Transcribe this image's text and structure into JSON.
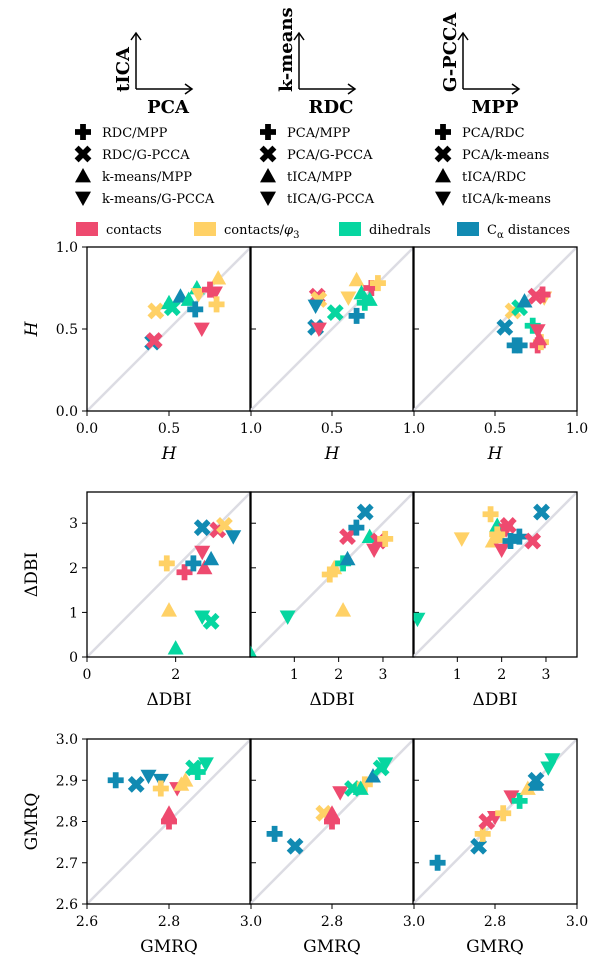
{
  "colors": {
    "contacts": "#ee4a6f",
    "contacts/φ3": "#ffd166",
    "dihedrals": "#06d6a0",
    "Cα distances": "#118ab2",
    "diagonal": "#dcdce3"
  },
  "pair_diagrams": [
    {
      "y": "tICA",
      "x": "PCA"
    },
    {
      "y": "k-means",
      "x": "RDC"
    },
    {
      "y": "G-PCCA",
      "x": "MPP"
    }
  ],
  "marker_legend": [
    [
      {
        "shape": "plus",
        "label": "RDC/MPP"
      },
      {
        "shape": "cross",
        "label": "RDC/G-PCCA"
      },
      {
        "shape": "triangle-up",
        "label": "k-means/MPP"
      },
      {
        "shape": "triangle-down",
        "label": "k-means/G-PCCA"
      }
    ],
    [
      {
        "shape": "plus",
        "label": "PCA/MPP"
      },
      {
        "shape": "cross",
        "label": "PCA/G-PCCA"
      },
      {
        "shape": "triangle-up",
        "label": "tICA/MPP"
      },
      {
        "shape": "triangle-down",
        "label": "tICA/G-PCCA"
      }
    ],
    [
      {
        "shape": "plus",
        "label": "PCA/RDC"
      },
      {
        "shape": "cross",
        "label": "PCA/k-means"
      },
      {
        "shape": "triangle-up",
        "label": "tICA/RDC"
      },
      {
        "shape": "triangle-down",
        "label": "tICA/k-means"
      }
    ]
  ],
  "color_legend": [
    {
      "key": "contacts",
      "label": "contacts"
    },
    {
      "key": "contacts/φ3",
      "label": "contacts/φ3"
    },
    {
      "key": "dihedrals",
      "label": "dihedrals"
    },
    {
      "key": "Cα distances",
      "label": "Cα distances"
    }
  ],
  "chart_data": [
    {
      "type": "scatter",
      "row": "H",
      "xlabel": "H",
      "ylabel": "H",
      "ylim": [
        0,
        1
      ],
      "yticks": [
        "0.0",
        "0.5",
        "1.0"
      ],
      "xlims": [
        [
          0,
          1
        ],
        [
          0,
          1
        ],
        [
          0,
          1
        ]
      ],
      "xticks": [
        [
          {
            "v": 0,
            "t": "0.0"
          },
          {
            "v": 0.5,
            "t": "0.5"
          },
          {
            "v": 1,
            "t": "1.0"
          }
        ],
        [
          {
            "v": 0.5,
            "t": "0.5"
          },
          {
            "v": 1,
            "t": "1.0"
          }
        ],
        [
          {
            "v": 0.5,
            "t": "0.5"
          },
          {
            "v": 1,
            "t": "1.0"
          }
        ]
      ],
      "points": [
        [
          [
            0.4,
            0.42,
            "cross",
            "Cα distances"
          ],
          [
            0.41,
            0.43,
            "cross",
            "contacts"
          ],
          [
            0.42,
            0.61,
            "cross",
            "contacts/φ3"
          ],
          [
            0.52,
            0.63,
            "cross",
            "dihedrals"
          ],
          [
            0.5,
            0.66,
            "triangle-up",
            "dihedrals"
          ],
          [
            0.57,
            0.7,
            "triangle-up",
            "Cα distances"
          ],
          [
            0.62,
            0.68,
            "triangle-up",
            "dihedrals"
          ],
          [
            0.67,
            0.75,
            "triangle-up",
            "dihedrals"
          ],
          [
            0.7,
            0.5,
            "triangle-down",
            "contacts"
          ],
          [
            0.68,
            0.71,
            "triangle-down",
            "contacts/φ3"
          ],
          [
            0.78,
            0.72,
            "triangle-down",
            "contacts"
          ],
          [
            0.8,
            0.81,
            "triangle-up",
            "contacts/φ3"
          ],
          [
            0.66,
            0.62,
            "plus",
            "Cα distances"
          ],
          [
            0.79,
            0.65,
            "plus",
            "contacts/φ3"
          ],
          [
            0.75,
            0.74,
            "plus",
            "contacts"
          ]
        ],
        [
          [
            0.4,
            0.51,
            "cross",
            "Cα distances"
          ],
          [
            0.41,
            0.7,
            "cross",
            "contacts"
          ],
          [
            0.42,
            0.68,
            "cross",
            "contacts/φ3"
          ],
          [
            0.52,
            0.6,
            "cross",
            "dihedrals"
          ],
          [
            0.4,
            0.64,
            "triangle-down",
            "Cα distances"
          ],
          [
            0.42,
            0.5,
            "triangle-down",
            "contacts"
          ],
          [
            0.6,
            0.69,
            "triangle-down",
            "contacts/φ3"
          ],
          [
            0.65,
            0.8,
            "triangle-up",
            "contacts/φ3"
          ],
          [
            0.68,
            0.72,
            "triangle-up",
            "dihedrals"
          ],
          [
            0.7,
            0.66,
            "plus",
            "dihedrals"
          ],
          [
            0.65,
            0.58,
            "plus",
            "Cα distances"
          ],
          [
            0.74,
            0.75,
            "plus",
            "contacts"
          ],
          [
            0.78,
            0.78,
            "plus",
            "contacts/φ3"
          ],
          [
            0.73,
            0.68,
            "triangle-up",
            "dihedrals"
          ]
        ],
        [
          [
            0.56,
            0.51,
            "cross",
            "Cα distances"
          ],
          [
            0.61,
            0.61,
            "cross",
            "contacts/φ3"
          ],
          [
            0.65,
            0.63,
            "cross",
            "dihedrals"
          ],
          [
            0.75,
            0.7,
            "cross",
            "contacts"
          ],
          [
            0.62,
            0.4,
            "plus",
            "Cα distances"
          ],
          [
            0.65,
            0.4,
            "plus",
            "Cα distances"
          ],
          [
            0.73,
            0.52,
            "plus",
            "dihedrals"
          ],
          [
            0.76,
            0.4,
            "plus",
            "contacts"
          ],
          [
            0.78,
            0.42,
            "plus",
            "contacts/φ3"
          ],
          [
            0.68,
            0.67,
            "triangle-up",
            "Cα distances"
          ],
          [
            0.76,
            0.49,
            "triangle-down",
            "contacts"
          ],
          [
            0.8,
            0.69,
            "triangle-down",
            "contacts/φ3"
          ],
          [
            0.79,
            0.71,
            "plus",
            "contacts"
          ],
          [
            0.77,
            0.44,
            "triangle-up",
            "contacts"
          ]
        ]
      ]
    },
    {
      "type": "scatter",
      "row": "ΔDBI",
      "xlabel": "ΔDBI",
      "ylabel": "ΔDBI",
      "ylim": [
        0,
        3.7
      ],
      "yticks": [
        "0",
        "1",
        "2",
        "3"
      ],
      "xlims": [
        [
          0,
          3.7
        ],
        [
          0,
          3.7
        ],
        [
          0,
          3.7
        ]
      ],
      "xticks": [
        [
          {
            "v": 0,
            "t": "0"
          },
          {
            "v": 2,
            "t": "2"
          }
        ],
        [
          {
            "v": 1,
            "t": "1"
          },
          {
            "v": 2,
            "t": "2"
          },
          {
            "v": 3,
            "t": "3"
          }
        ],
        [
          {
            "v": 1,
            "t": "1"
          },
          {
            "v": 2,
            "t": "2"
          },
          {
            "v": 3,
            "t": "3"
          }
        ]
      ],
      "points": [
        [
          [
            1.8,
            2.1,
            "plus",
            "contacts/φ3"
          ],
          [
            1.85,
            1.05,
            "triangle-up",
            "contacts/φ3"
          ],
          [
            2.0,
            0.2,
            "triangle-up",
            "dihedrals"
          ],
          [
            2.2,
            1.9,
            "plus",
            "contacts"
          ],
          [
            2.4,
            2.1,
            "plus",
            "Cα distances"
          ],
          [
            2.6,
            2.9,
            "cross",
            "Cα distances"
          ],
          [
            2.6,
            0.9,
            "triangle-down",
            "dihedrals"
          ],
          [
            2.6,
            2.35,
            "triangle-down",
            "contacts"
          ],
          [
            2.65,
            2.0,
            "triangle-up",
            "contacts"
          ],
          [
            2.8,
            2.2,
            "triangle-up",
            "Cα distances"
          ],
          [
            2.8,
            0.8,
            "cross",
            "dihedrals"
          ],
          [
            2.95,
            2.85,
            "cross",
            "contacts"
          ],
          [
            3.1,
            2.95,
            "cross",
            "contacts/φ3"
          ],
          [
            3.3,
            2.7,
            "triangle-down",
            "Cα distances"
          ]
        ],
        [
          [
            0.0,
            0.1,
            "triangle-up",
            "dihedrals"
          ],
          [
            0.85,
            0.9,
            "triangle-down",
            "dihedrals"
          ],
          [
            1.8,
            1.85,
            "plus",
            "contacts/φ3"
          ],
          [
            1.9,
            2.0,
            "triangle-up",
            "contacts/φ3"
          ],
          [
            2.1,
            2.1,
            "plus",
            "dihedrals"
          ],
          [
            2.2,
            2.2,
            "triangle-up",
            "Cα distances"
          ],
          [
            2.1,
            1.05,
            "triangle-up",
            "contacts/φ3"
          ],
          [
            2.2,
            2.7,
            "cross",
            "contacts"
          ],
          [
            2.4,
            2.9,
            "plus",
            "Cα distances"
          ],
          [
            2.6,
            3.25,
            "cross",
            "Cα distances"
          ],
          [
            2.7,
            2.7,
            "triangle-up",
            "dihedrals"
          ],
          [
            2.9,
            2.6,
            "cross",
            "contacts"
          ],
          [
            2.8,
            2.4,
            "triangle-down",
            "contacts"
          ],
          [
            3.05,
            2.65,
            "plus",
            "contacts/φ3"
          ]
        ],
        [
          [
            0.1,
            0.85,
            "triangle-down",
            "dihedrals"
          ],
          [
            1.1,
            2.65,
            "triangle-down",
            "contacts/φ3"
          ],
          [
            1.75,
            3.2,
            "plus",
            "contacts/φ3"
          ],
          [
            1.8,
            2.6,
            "triangle-up",
            "contacts/φ3"
          ],
          [
            1.9,
            2.95,
            "triangle-up",
            "dihedrals"
          ],
          [
            1.95,
            2.7,
            "triangle-up",
            "contacts/φ3"
          ],
          [
            2.1,
            2.85,
            "triangle-down",
            "contacts"
          ],
          [
            2.15,
            2.95,
            "cross",
            "contacts"
          ],
          [
            2.0,
            2.4,
            "triangle-down",
            "contacts"
          ],
          [
            2.2,
            2.6,
            "plus",
            "Cα distances"
          ],
          [
            2.4,
            2.7,
            "plus",
            "Cα distances"
          ],
          [
            2.7,
            2.6,
            "cross",
            "contacts"
          ],
          [
            2.9,
            3.25,
            "cross",
            "Cα distances"
          ],
          [
            1.9,
            2.75,
            "plus",
            "contacts/φ3"
          ]
        ]
      ]
    },
    {
      "type": "scatter",
      "row": "GMRQ",
      "xlabel": "GMRQ",
      "ylabel": "GMRQ",
      "ylim": [
        2.6,
        3.0
      ],
      "yticks": [
        "2.6",
        "2.7",
        "2.8",
        "2.9",
        "3.0"
      ],
      "xlims": [
        [
          2.6,
          3.0
        ],
        [
          2.6,
          3.0
        ],
        [
          2.6,
          3.0
        ]
      ],
      "xticks": [
        [
          {
            "v": 2.6,
            "t": "2.6"
          },
          {
            "v": 2.8,
            "t": "2.8"
          },
          {
            "v": 3.0,
            "t": "3.0"
          }
        ],
        [
          {
            "v": 2.8,
            "t": "2.8"
          },
          {
            "v": 3.0,
            "t": "3.0"
          }
        ],
        [
          {
            "v": 2.8,
            "t": "2.8"
          },
          {
            "v": 3.0,
            "t": "3.0"
          }
        ]
      ],
      "points": [
        [
          [
            2.67,
            2.9,
            "plus",
            "Cα distances"
          ],
          [
            2.72,
            2.89,
            "cross",
            "Cα distances"
          ],
          [
            2.75,
            2.91,
            "triangle-down",
            "Cα distances"
          ],
          [
            2.78,
            2.9,
            "triangle-down",
            "Cα distances"
          ],
          [
            2.78,
            2.88,
            "plus",
            "contacts/φ3"
          ],
          [
            2.8,
            2.82,
            "triangle-up",
            "contacts"
          ],
          [
            2.8,
            2.8,
            "plus",
            "contacts"
          ],
          [
            2.82,
            2.88,
            "triangle-down",
            "contacts"
          ],
          [
            2.84,
            2.9,
            "triangle-up",
            "contacts/φ3"
          ],
          [
            2.86,
            2.93,
            "cross",
            "dihedrals"
          ],
          [
            2.87,
            2.92,
            "plus",
            "dihedrals"
          ],
          [
            2.89,
            2.94,
            "triangle-down",
            "dihedrals"
          ],
          [
            2.83,
            2.89,
            "triangle-up",
            "contacts/φ3"
          ]
        ],
        [
          [
            2.66,
            2.77,
            "plus",
            "Cα distances"
          ],
          [
            2.71,
            2.74,
            "cross",
            "Cα distances"
          ],
          [
            2.78,
            2.82,
            "cross",
            "contacts/φ3"
          ],
          [
            2.8,
            2.8,
            "plus",
            "contacts"
          ],
          [
            2.8,
            2.82,
            "triangle-up",
            "contacts"
          ],
          [
            2.82,
            2.87,
            "triangle-down",
            "contacts"
          ],
          [
            2.85,
            2.88,
            "cross",
            "dihedrals"
          ],
          [
            2.88,
            2.89,
            "plus",
            "contacts/φ3"
          ],
          [
            2.9,
            2.91,
            "triangle-up",
            "Cα distances"
          ],
          [
            2.92,
            2.93,
            "cross",
            "dihedrals"
          ],
          [
            2.93,
            2.94,
            "triangle-down",
            "dihedrals"
          ],
          [
            2.87,
            2.88,
            "triangle-up",
            "dihedrals"
          ]
        ],
        [
          [
            2.66,
            2.7,
            "plus",
            "Cα distances"
          ],
          [
            2.76,
            2.74,
            "cross",
            "Cα distances"
          ],
          [
            2.77,
            2.77,
            "plus",
            "contacts/φ3"
          ],
          [
            2.78,
            2.8,
            "cross",
            "contacts"
          ],
          [
            2.8,
            2.81,
            "triangle-down",
            "contacts"
          ],
          [
            2.82,
            2.82,
            "plus",
            "contacts/φ3"
          ],
          [
            2.84,
            2.86,
            "triangle-down",
            "contacts"
          ],
          [
            2.86,
            2.85,
            "plus",
            "dihedrals"
          ],
          [
            2.88,
            2.88,
            "triangle-up",
            "contacts/φ3"
          ],
          [
            2.9,
            2.9,
            "cross",
            "Cα distances"
          ],
          [
            2.93,
            2.93,
            "triangle-down",
            "dihedrals"
          ],
          [
            2.94,
            2.95,
            "triangle-down",
            "dihedrals"
          ],
          [
            2.9,
            2.89,
            "triangle-up",
            "Cα distances"
          ]
        ]
      ]
    }
  ]
}
